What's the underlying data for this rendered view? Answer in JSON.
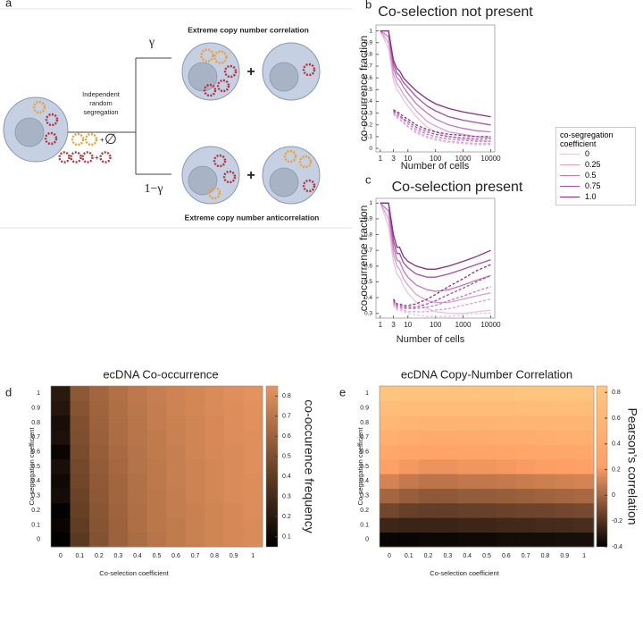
{
  "diagram": {
    "panel_label": "a",
    "segregation_label": [
      "Independent",
      "random",
      "segregation"
    ],
    "correlation_label": "Extreme copy number correlation",
    "anticorrelation_label": "Extreme copy number anticorrelation",
    "gamma": "γ",
    "one_minus_gamma": "1−γ",
    "plus": "+",
    "empty_set": "∅"
  },
  "chart_data": [
    {
      "type": "line",
      "panel_label": "b",
      "title": "Co-selection not present",
      "x_label": "Number of cells",
      "y_label": "co-occurrence fraction",
      "log_x": true,
      "x": [
        1,
        2,
        3,
        4,
        5,
        7,
        10,
        20,
        50,
        100,
        300,
        1000,
        3000,
        10000
      ],
      "xlim": [
        0.7,
        14000
      ],
      "xticks": [
        1,
        3,
        10,
        100,
        1000,
        10000
      ],
      "ylim": [
        -0.03,
        1.05
      ],
      "yticks": [
        0,
        0.1,
        0.2,
        0.3,
        0.4,
        0.5,
        0.6,
        0.7,
        0.8,
        0.9,
        1
      ],
      "legend_title": "co-segregation coefficient",
      "series": [
        {
          "name": "0",
          "color": "#e6c6df",
          "values": [
            1,
            0.85,
            0.58,
            0.5,
            0.47,
            0.41,
            0.36,
            0.27,
            0.18,
            0.14,
            0.1,
            0.08,
            0.07,
            0.06
          ],
          "dashed_values": [
            null,
            null,
            0.29,
            0.26,
            0.24,
            0.21,
            0.18,
            0.13,
            0.09,
            0.07,
            0.05,
            0.04,
            0.03,
            0.03
          ]
        },
        {
          "name": "0.25",
          "color": "#dba0d2",
          "values": [
            1,
            0.9,
            0.63,
            0.55,
            0.52,
            0.46,
            0.41,
            0.32,
            0.23,
            0.19,
            0.14,
            0.12,
            0.1,
            0.09
          ],
          "dashed_values": [
            null,
            null,
            0.3,
            0.27,
            0.25,
            0.22,
            0.19,
            0.14,
            0.1,
            0.08,
            0.06,
            0.05,
            0.04,
            0.04
          ]
        },
        {
          "name": "0.5",
          "color": "#c874c0",
          "values": [
            1,
            0.95,
            0.68,
            0.6,
            0.58,
            0.52,
            0.47,
            0.38,
            0.3,
            0.25,
            0.2,
            0.17,
            0.15,
            0.14
          ],
          "dashed_values": [
            null,
            null,
            0.31,
            0.28,
            0.27,
            0.24,
            0.21,
            0.16,
            0.12,
            0.1,
            0.08,
            0.07,
            0.06,
            0.06
          ]
        },
        {
          "name": "0.75",
          "color": "#ad4ca6",
          "values": [
            1,
            1,
            0.72,
            0.64,
            0.62,
            0.56,
            0.52,
            0.44,
            0.36,
            0.32,
            0.27,
            0.24,
            0.22,
            0.2
          ],
          "dashed_values": [
            null,
            null,
            0.32,
            0.3,
            0.28,
            0.25,
            0.23,
            0.18,
            0.14,
            0.12,
            0.1,
            0.09,
            0.08,
            0.08
          ]
        },
        {
          "name": "1.0",
          "color": "#8e2a8c",
          "values": [
            1,
            1,
            0.75,
            0.68,
            0.66,
            0.6,
            0.56,
            0.49,
            0.42,
            0.38,
            0.34,
            0.31,
            0.29,
            0.27
          ],
          "dashed_values": [
            null,
            null,
            0.33,
            0.31,
            0.3,
            0.27,
            0.25,
            0.2,
            0.16,
            0.14,
            0.12,
            0.11,
            0.1,
            0.1
          ]
        }
      ]
    },
    {
      "type": "line",
      "panel_label": "c",
      "title": "Co-selection present",
      "x_label": "Number of cells",
      "y_label": "co-occurrence fraction",
      "log_x": true,
      "x": [
        1,
        2,
        3,
        4,
        5,
        7,
        10,
        20,
        50,
        100,
        300,
        1000,
        3000,
        10000
      ],
      "xlim": [
        0.7,
        14000
      ],
      "xticks": [
        1,
        3,
        10,
        100,
        1000,
        10000
      ],
      "ylim": [
        0.27,
        1.03
      ],
      "yticks": [
        0.3,
        0.4,
        0.5,
        0.6,
        0.7,
        0.8,
        0.9,
        1
      ],
      "series": [
        {
          "color": "#e6c6df",
          "values": [
            1,
            0.85,
            0.63,
            0.55,
            0.53,
            0.47,
            0.43,
            0.37,
            0.33,
            0.31,
            0.3,
            0.3,
            0.31,
            0.32
          ],
          "dashed_values": [
            null,
            null,
            0.35,
            0.32,
            0.32,
            0.31,
            0.3,
            0.29,
            0.28,
            0.28,
            0.28,
            0.29,
            0.3,
            0.3
          ]
        },
        {
          "color": "#dba0d2",
          "values": [
            1,
            0.9,
            0.68,
            0.6,
            0.58,
            0.52,
            0.48,
            0.42,
            0.38,
            0.37,
            0.37,
            0.39,
            0.41,
            0.43
          ],
          "dashed_values": [
            null,
            null,
            0.36,
            0.33,
            0.33,
            0.32,
            0.31,
            0.31,
            0.31,
            0.32,
            0.33,
            0.35,
            0.37,
            0.39
          ]
        },
        {
          "color": "#c874c0",
          "values": [
            1,
            0.95,
            0.72,
            0.64,
            0.63,
            0.57,
            0.53,
            0.48,
            0.45,
            0.44,
            0.45,
            0.48,
            0.51,
            0.54
          ],
          "dashed_values": [
            null,
            null,
            0.37,
            0.34,
            0.34,
            0.33,
            0.33,
            0.33,
            0.34,
            0.35,
            0.38,
            0.41,
            0.44,
            0.47
          ]
        },
        {
          "color": "#ad4ca6",
          "values": [
            1,
            1,
            0.76,
            0.68,
            0.68,
            0.62,
            0.59,
            0.55,
            0.53,
            0.53,
            0.55,
            0.58,
            0.61,
            0.64
          ],
          "dashed_values": [
            null,
            null,
            0.38,
            0.35,
            0.35,
            0.34,
            0.34,
            0.34,
            0.36,
            0.38,
            0.42,
            0.46,
            0.5,
            0.54
          ]
        },
        {
          "color": "#8e2a8c",
          "values": [
            1,
            1,
            0.8,
            0.72,
            0.72,
            0.66,
            0.63,
            0.6,
            0.58,
            0.58,
            0.6,
            0.63,
            0.66,
            0.7
          ],
          "dashed_values": [
            null,
            null,
            0.39,
            0.36,
            0.36,
            0.35,
            0.35,
            0.36,
            0.39,
            0.42,
            0.47,
            0.52,
            0.57,
            0.61
          ]
        }
      ]
    },
    {
      "type": "heatmap",
      "panel_label": "d",
      "title": "ecDNA Co-occurrence",
      "x_label": "Co-selection coefficient",
      "y_label": "Co-segregation coefficient",
      "colorbar_label": "co-occurence frequency",
      "x": [
        0,
        0.1,
        0.2,
        0.3,
        0.4,
        0.5,
        0.6,
        0.7,
        0.8,
        0.9,
        1
      ],
      "y": [
        0,
        0.1,
        0.2,
        0.3,
        0.4,
        0.5,
        0.6,
        0.7,
        0.8,
        0.9,
        1
      ],
      "clim": [
        0.05,
        0.85
      ],
      "cticks": [
        0.1,
        0.2,
        0.3,
        0.4,
        0.5,
        0.6,
        0.7,
        0.8
      ],
      "colormap": [
        "#000000",
        "#6e4428",
        "#e8955f"
      ],
      "values": [
        [
          0.05,
          0.38,
          0.52,
          0.6,
          0.65,
          0.69,
          0.72,
          0.75,
          0.77,
          0.79,
          0.8
        ],
        [
          0.08,
          0.4,
          0.53,
          0.6,
          0.66,
          0.7,
          0.72,
          0.75,
          0.77,
          0.79,
          0.8
        ],
        [
          0.06,
          0.42,
          0.54,
          0.61,
          0.66,
          0.7,
          0.73,
          0.75,
          0.77,
          0.79,
          0.81
        ],
        [
          0.12,
          0.44,
          0.55,
          0.62,
          0.67,
          0.7,
          0.73,
          0.76,
          0.78,
          0.8,
          0.81
        ],
        [
          0.1,
          0.46,
          0.56,
          0.62,
          0.67,
          0.71,
          0.74,
          0.76,
          0.78,
          0.8,
          0.81
        ],
        [
          0.14,
          0.47,
          0.57,
          0.63,
          0.68,
          0.71,
          0.74,
          0.76,
          0.78,
          0.8,
          0.82
        ],
        [
          0.08,
          0.49,
          0.58,
          0.64,
          0.68,
          0.72,
          0.74,
          0.77,
          0.79,
          0.8,
          0.82
        ],
        [
          0.15,
          0.5,
          0.59,
          0.65,
          0.69,
          0.72,
          0.75,
          0.77,
          0.79,
          0.81,
          0.82
        ],
        [
          0.13,
          0.51,
          0.6,
          0.65,
          0.69,
          0.73,
          0.75,
          0.77,
          0.79,
          0.81,
          0.83
        ],
        [
          0.18,
          0.53,
          0.61,
          0.66,
          0.7,
          0.73,
          0.76,
          0.78,
          0.8,
          0.81,
          0.83
        ],
        [
          0.2,
          0.55,
          0.62,
          0.67,
          0.71,
          0.74,
          0.76,
          0.78,
          0.8,
          0.82,
          0.84
        ]
      ]
    },
    {
      "type": "heatmap",
      "panel_label": "e",
      "title": "ecDNA Copy-Number Correlation",
      "x_label": "Co-selection coefficient",
      "y_label": "Co-segregation coefficient",
      "colorbar_label": "Pearson's correlation",
      "x": [
        0,
        0.1,
        0.2,
        0.3,
        0.4,
        0.5,
        0.6,
        0.7,
        0.8,
        0.9,
        1
      ],
      "y": [
        0,
        0.1,
        0.2,
        0.3,
        0.4,
        0.5,
        0.6,
        0.7,
        0.8,
        0.9,
        1
      ],
      "clim": [
        -0.4,
        0.85
      ],
      "cticks": [
        -0.4,
        -0.2,
        0,
        0.2,
        0.4,
        0.6,
        0.8
      ],
      "colormap": [
        "#000000",
        "#ff9f65",
        "#ffc77f"
      ],
      "values": [
        [
          -0.38,
          -0.38,
          -0.37,
          -0.37,
          -0.36,
          -0.36,
          -0.35,
          -0.35,
          -0.35,
          -0.34,
          -0.34
        ],
        [
          -0.25,
          -0.26,
          -0.26,
          -0.26,
          -0.25,
          -0.25,
          -0.24,
          -0.24,
          -0.23,
          -0.23,
          -0.22
        ],
        [
          -0.12,
          -0.15,
          -0.16,
          -0.16,
          -0.15,
          -0.15,
          -0.14,
          -0.13,
          -0.13,
          -0.12,
          -0.11
        ],
        [
          0,
          -0.03,
          -0.05,
          -0.05,
          -0.04,
          -0.04,
          -0.03,
          -0.02,
          -0.01,
          0,
          0.01
        ],
        [
          0.12,
          0.08,
          0.06,
          0.06,
          0.07,
          0.07,
          0.08,
          0.09,
          0.1,
          0.11,
          0.12
        ],
        [
          0.25,
          0.2,
          0.18,
          0.18,
          0.19,
          0.19,
          0.2,
          0.21,
          0.22,
          0.23,
          0.24
        ],
        [
          0.37,
          0.32,
          0.3,
          0.3,
          0.31,
          0.31,
          0.32,
          0.33,
          0.34,
          0.35,
          0.36
        ],
        [
          0.48,
          0.44,
          0.42,
          0.42,
          0.43,
          0.43,
          0.44,
          0.45,
          0.46,
          0.47,
          0.47
        ],
        [
          0.6,
          0.57,
          0.55,
          0.55,
          0.56,
          0.56,
          0.57,
          0.57,
          0.58,
          0.58,
          0.59
        ],
        [
          0.7,
          0.68,
          0.67,
          0.67,
          0.67,
          0.68,
          0.68,
          0.69,
          0.69,
          0.7,
          0.7
        ],
        [
          0.8,
          0.79,
          0.79,
          0.79,
          0.79,
          0.79,
          0.79,
          0.8,
          0.8,
          0.8,
          0.8
        ]
      ]
    }
  ]
}
